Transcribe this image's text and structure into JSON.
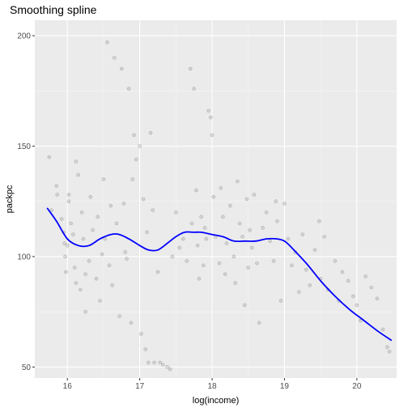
{
  "chart_data": {
    "type": "scatter",
    "title": "Smoothing spline",
    "xlabel": "log(income)",
    "ylabel": "packpc",
    "xlim": [
      15.55,
      20.55
    ],
    "ylim": [
      45,
      207
    ],
    "xticks": [
      "16",
      "17",
      "18",
      "19",
      "20"
    ],
    "yticks": [
      "50",
      "100",
      "150",
      "200"
    ],
    "grid": true,
    "colors": {
      "panel": "#ebebeb",
      "grid_major": "#ffffff",
      "points": "#8c8c8c",
      "line": "#0000ff"
    },
    "series": [
      {
        "kind": "points",
        "points": [
          [
            15.75,
            145
          ],
          [
            15.78,
            121
          ],
          [
            15.85,
            132
          ],
          [
            15.86,
            128
          ],
          [
            15.92,
            117
          ],
          [
            15.95,
            111
          ],
          [
            15.96,
            106
          ],
          [
            15.97,
            100
          ],
          [
            15.98,
            93
          ],
          [
            16.0,
            105
          ],
          [
            16.02,
            125
          ],
          [
            16.02,
            128
          ],
          [
            16.05,
            115
          ],
          [
            16.08,
            110
          ],
          [
            16.1,
            95
          ],
          [
            16.12,
            88
          ],
          [
            16.12,
            143
          ],
          [
            16.15,
            137
          ],
          [
            16.18,
            85
          ],
          [
            16.2,
            120
          ],
          [
            16.22,
            108
          ],
          [
            16.25,
            92
          ],
          [
            16.25,
            75
          ],
          [
            16.3,
            98
          ],
          [
            16.32,
            127
          ],
          [
            16.35,
            112
          ],
          [
            16.4,
            90
          ],
          [
            16.42,
            118
          ],
          [
            16.45,
            80
          ],
          [
            16.48,
            101
          ],
          [
            16.5,
            135
          ],
          [
            16.52,
            108
          ],
          [
            16.55,
            197
          ],
          [
            16.58,
            96
          ],
          [
            16.6,
            123
          ],
          [
            16.62,
            87
          ],
          [
            16.65,
            190
          ],
          [
            16.68,
            115
          ],
          [
            16.72,
            73
          ],
          [
            16.75,
            185
          ],
          [
            16.78,
            124
          ],
          [
            16.8,
            102
          ],
          [
            16.82,
            99
          ],
          [
            16.85,
            176
          ],
          [
            16.88,
            70
          ],
          [
            16.9,
            135
          ],
          [
            16.92,
            155
          ],
          [
            16.95,
            144
          ],
          [
            17.0,
            150
          ],
          [
            17.02,
            65
          ],
          [
            17.05,
            126
          ],
          [
            17.08,
            58
          ],
          [
            17.1,
            111
          ],
          [
            17.12,
            52
          ],
          [
            17.15,
            156
          ],
          [
            17.18,
            121
          ],
          [
            17.2,
            52
          ],
          [
            17.25,
            93
          ],
          [
            17.28,
            52
          ],
          [
            17.32,
            51
          ],
          [
            17.38,
            50
          ],
          [
            17.42,
            49
          ],
          [
            17.45,
            100
          ],
          [
            17.5,
            120
          ],
          [
            17.55,
            104
          ],
          [
            17.6,
            108
          ],
          [
            17.65,
            98
          ],
          [
            17.7,
            185
          ],
          [
            17.72,
            115
          ],
          [
            17.75,
            176
          ],
          [
            17.78,
            130
          ],
          [
            17.8,
            105
          ],
          [
            17.82,
            90
          ],
          [
            17.85,
            118
          ],
          [
            17.88,
            96
          ],
          [
            17.9,
            113
          ],
          [
            17.92,
            108
          ],
          [
            17.95,
            166
          ],
          [
            17.98,
            163
          ],
          [
            18.0,
            155
          ],
          [
            18.02,
            127
          ],
          [
            18.05,
            109
          ],
          [
            18.1,
            97
          ],
          [
            18.12,
            131
          ],
          [
            18.15,
            118
          ],
          [
            18.18,
            92
          ],
          [
            18.2,
            106
          ],
          [
            18.25,
            123
          ],
          [
            18.3,
            100
          ],
          [
            18.32,
            88
          ],
          [
            18.35,
            134
          ],
          [
            18.38,
            115
          ],
          [
            18.42,
            109
          ],
          [
            18.45,
            78
          ],
          [
            18.48,
            126
          ],
          [
            18.5,
            95
          ],
          [
            18.52,
            112
          ],
          [
            18.55,
            104
          ],
          [
            18.58,
            128
          ],
          [
            18.62,
            97
          ],
          [
            18.65,
            70
          ],
          [
            18.7,
            113
          ],
          [
            18.75,
            120
          ],
          [
            18.8,
            107
          ],
          [
            18.85,
            98
          ],
          [
            18.88,
            125
          ],
          [
            18.9,
            116
          ],
          [
            18.95,
            80
          ],
          [
            19.0,
            124
          ],
          [
            19.05,
            108
          ],
          [
            19.1,
            96
          ],
          [
            19.15,
            102
          ],
          [
            19.2,
            84
          ],
          [
            19.25,
            110
          ],
          [
            19.3,
            94
          ],
          [
            19.35,
            87
          ],
          [
            19.42,
            103
          ],
          [
            19.48,
            116
          ],
          [
            19.5,
            90
          ],
          [
            19.55,
            109
          ],
          [
            19.6,
            85
          ],
          [
            19.7,
            98
          ],
          [
            19.75,
            80
          ],
          [
            19.8,
            93
          ],
          [
            19.88,
            89
          ],
          [
            19.95,
            82
          ],
          [
            20.0,
            78
          ],
          [
            20.05,
            71
          ],
          [
            20.12,
            91
          ],
          [
            20.2,
            86
          ],
          [
            20.28,
            81
          ],
          [
            20.36,
            67
          ],
          [
            20.42,
            59
          ],
          [
            20.45,
            57
          ]
        ]
      },
      {
        "kind": "smoothing-spline",
        "x": [
          15.72,
          15.85,
          16.0,
          16.15,
          16.3,
          16.45,
          16.6,
          16.72,
          16.85,
          17.0,
          17.12,
          17.25,
          17.38,
          17.5,
          17.62,
          17.75,
          17.85,
          18.0,
          18.15,
          18.3,
          18.45,
          18.6,
          18.75,
          18.9,
          19.0,
          19.1,
          19.3,
          19.5,
          19.7,
          19.9,
          20.1,
          20.3,
          20.48
        ],
        "y": [
          122,
          116,
          108,
          105,
          105,
          108,
          110,
          110,
          108,
          105,
          103,
          103,
          106,
          109,
          111,
          111,
          111,
          110,
          109,
          107,
          107,
          107,
          108,
          108,
          107,
          104,
          97,
          89,
          82,
          76,
          71,
          66,
          62
        ]
      }
    ]
  }
}
